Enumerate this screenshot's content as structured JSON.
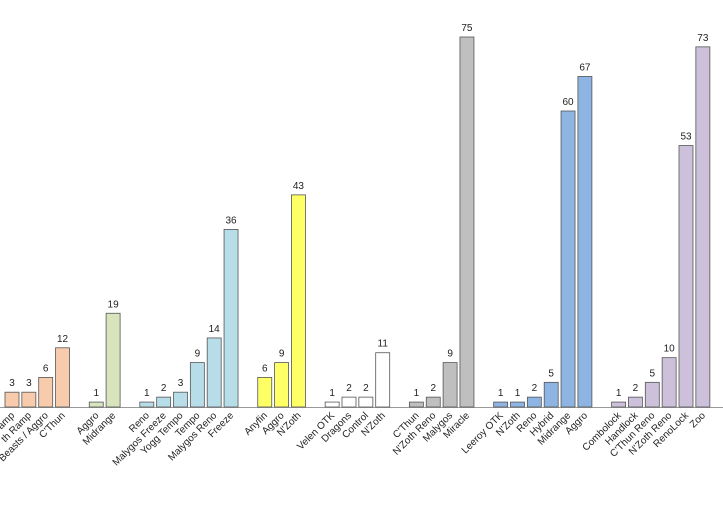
{
  "chart_data": {
    "type": "bar",
    "categories": [
      "amp",
      "th Ramp",
      "Beasts / Aggro",
      "C'Thun",
      null,
      "Aggro",
      "Midrange",
      null,
      "Reno",
      "Malygos Freeze",
      "Yogg Tempo",
      "Tempo",
      "Malygos Reno",
      "Freeze",
      null,
      "Anyfin",
      "Aggro",
      "N'Zoth",
      null,
      "Velen OTK",
      "Dragons",
      "Control",
      "N'Zoth",
      null,
      "C'Thun",
      "N'Zoth Reno",
      "Malygos",
      "Miracle",
      null,
      "Leeroy OTK",
      "N'Zoth",
      "Reno",
      "Hybrid",
      "Midrange",
      "Aggro",
      null,
      "Combolock",
      "Handlock",
      "C'Thun Reno",
      "N'Zoth Reno",
      "RenoLock",
      "Zoo"
    ],
    "values": [
      3,
      3,
      6,
      12,
      null,
      1,
      19,
      null,
      1,
      2,
      3,
      9,
      14,
      36,
      null,
      6,
      9,
      43,
      null,
      1,
      2,
      2,
      11,
      null,
      1,
      2,
      9,
      75,
      null,
      1,
      1,
      2,
      5,
      60,
      67,
      null,
      1,
      2,
      5,
      10,
      53,
      73
    ],
    "colors": [
      "#f8cbad",
      "#f8cbad",
      "#f8cbad",
      "#f8cbad",
      null,
      "#d8e4bc",
      "#d8e4bc",
      null,
      "#b7dee8",
      "#b7dee8",
      "#b7dee8",
      "#b7dee8",
      "#b7dee8",
      "#b7dee8",
      null,
      "#ffff66",
      "#ffff66",
      "#ffff66",
      null,
      "#ffffff",
      "#ffffff",
      "#ffffff",
      "#ffffff",
      null,
      "#bfbfbf",
      "#bfbfbf",
      "#bfbfbf",
      "#bfbfbf",
      null,
      "#8db4e2",
      "#8db4e2",
      "#8db4e2",
      "#8db4e2",
      "#8db4e2",
      "#8db4e2",
      null,
      "#ccc0da",
      "#ccc0da",
      "#ccc0da",
      "#ccc0da",
      "#ccc0da",
      "#ccc0da"
    ],
    "ylim": [
      0,
      75
    ]
  }
}
